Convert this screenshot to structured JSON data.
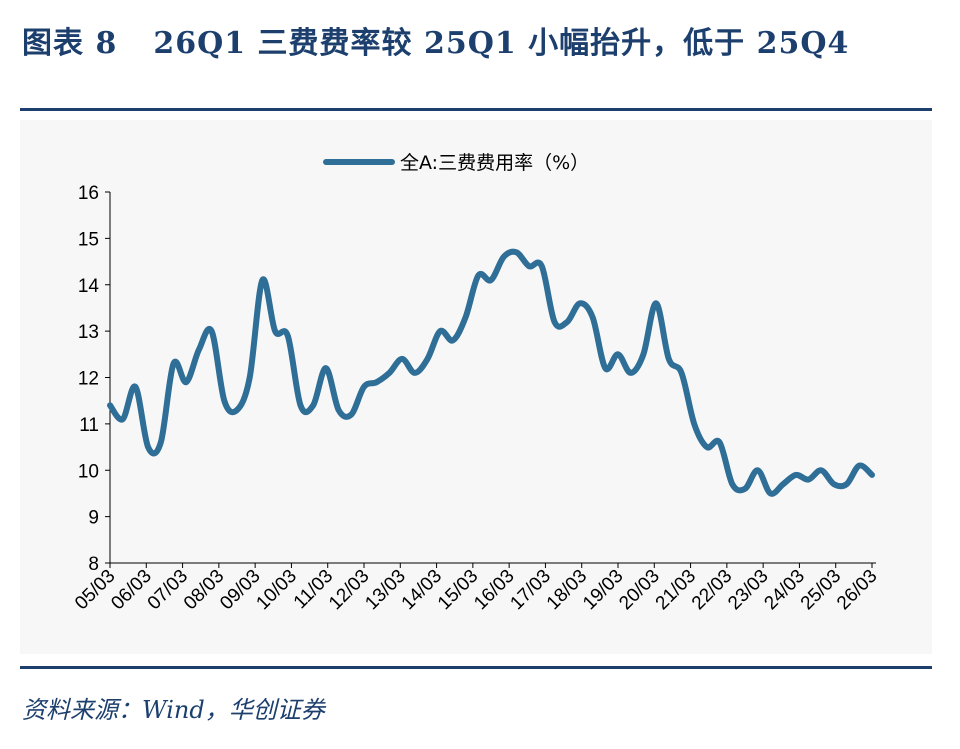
{
  "header": {
    "figure_label": "图表 8",
    "title": "26Q1 三费费率较 25Q1 小幅抬升，低于 25Q4"
  },
  "footer": {
    "source": "资料来源：Wind，华创证券"
  },
  "colors": {
    "title": "#1c3f6e",
    "rules": "#1c3f6e",
    "series_line": "#2f6e96",
    "panel_background": "#f7f7f7",
    "axis": "#000000"
  },
  "chart_data": {
    "type": "line",
    "title": "",
    "xlabel": "",
    "ylabel": "",
    "ylim": [
      8,
      16
    ],
    "yticks": [
      "8",
      "9",
      "10",
      "11",
      "12",
      "13",
      "14",
      "15",
      "16"
    ],
    "grid": false,
    "legend_position": "top-center",
    "x_tick_labels": [
      "05/03",
      "06/03",
      "07/03",
      "08/03",
      "09/03",
      "10/03",
      "11/03",
      "12/03",
      "13/03",
      "14/03",
      "15/03",
      "16/03",
      "17/03",
      "18/03",
      "19/03",
      "20/03",
      "21/03",
      "22/03",
      "23/03",
      "24/03",
      "25/03",
      "26/03"
    ],
    "x_start_quarter": "05Q1",
    "frequency": "quarterly",
    "series": [
      {
        "name": "全A:三费费用率（%）",
        "color": "#2f6e96",
        "values": [
          11.4,
          11.1,
          11.8,
          10.5,
          10.6,
          12.3,
          11.9,
          12.6,
          13.0,
          11.5,
          11.3,
          12.0,
          14.1,
          13.0,
          12.9,
          11.4,
          11.4,
          12.2,
          11.3,
          11.2,
          11.8,
          11.9,
          12.1,
          12.4,
          12.1,
          12.4,
          13.0,
          12.8,
          13.3,
          14.2,
          14.1,
          14.6,
          14.7,
          14.4,
          14.4,
          13.2,
          13.2,
          13.6,
          13.3,
          12.2,
          12.5,
          12.1,
          12.5,
          13.6,
          12.4,
          12.1,
          11.0,
          10.5,
          10.6,
          9.7,
          9.6,
          10.0,
          9.5,
          9.7,
          9.9,
          9.8,
          10.0,
          9.7,
          9.7,
          10.1,
          9.9
        ]
      }
    ]
  }
}
